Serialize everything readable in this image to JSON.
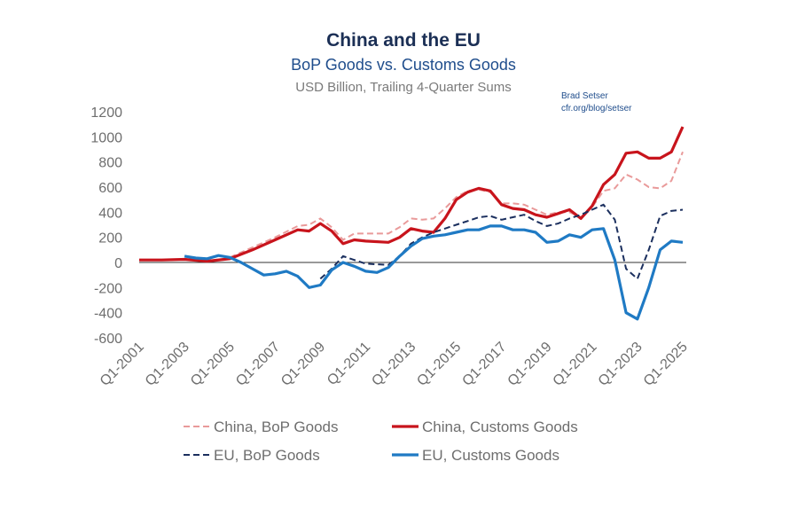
{
  "chart_data": {
    "type": "line",
    "title": "China and the EU",
    "subtitle": "BoP Goods vs. Customs Goods",
    "subtitle2": "USD Billion, Trailing 4-Quarter Sums",
    "credit": [
      "Brad Setser",
      "cfr.org/blog/setser"
    ],
    "ylim": [
      -600,
      1200
    ],
    "yticks": [
      1200,
      1000,
      800,
      600,
      400,
      200,
      0,
      -200,
      -400,
      -600
    ],
    "xlim": [
      2001,
      2025
    ],
    "xticks": [
      "Q1-2001",
      "Q1-2003",
      "Q1-2005",
      "Q1-2007",
      "Q1-2009",
      "Q1-2011",
      "Q1-2013",
      "Q1-2015",
      "Q1-2017",
      "Q1-2019",
      "Q1-2021",
      "Q1-2023",
      "Q1-2025"
    ],
    "grid": false,
    "legend_position": "bottom",
    "series": [
      {
        "name": "China, BoP Goods",
        "color": "#e99a9a",
        "style": "dashed",
        "x": [
          2005,
          2006,
          2007,
          2008,
          2008.5,
          2009,
          2009.5,
          2010,
          2010.5,
          2011,
          2012,
          2012.5,
          2013,
          2013.5,
          2014,
          2014.5,
          2015,
          2015.5,
          2016,
          2016.5,
          2017,
          2017.5,
          2018,
          2018.5,
          2019,
          2019.5,
          2020,
          2020.5,
          2021,
          2021.5,
          2022,
          2022.5,
          2023,
          2023.5,
          2024,
          2024.5,
          2025
        ],
        "values": [
          40,
          120,
          200,
          290,
          300,
          350,
          280,
          180,
          230,
          230,
          230,
          280,
          350,
          340,
          350,
          430,
          520,
          570,
          580,
          560,
          470,
          470,
          460,
          420,
          380,
          400,
          400,
          360,
          440,
          570,
          590,
          700,
          660,
          600,
          590,
          650,
          880
        ]
      },
      {
        "name": "China, Customs Goods",
        "color": "#c8141c",
        "style": "solid",
        "x": [
          2001,
          2002,
          2003,
          2004,
          2005,
          2006,
          2007,
          2008,
          2008.5,
          2009,
          2009.5,
          2010,
          2010.5,
          2011,
          2012,
          2012.5,
          2013,
          2013.5,
          2014,
          2014.5,
          2015,
          2015.5,
          2016,
          2016.5,
          2017,
          2017.5,
          2018,
          2018.5,
          2019,
          2019.5,
          2020,
          2020.5,
          2021,
          2021.5,
          2022,
          2022.5,
          2023,
          2023.5,
          2024,
          2024.5,
          2025
        ],
        "values": [
          20,
          20,
          25,
          10,
          30,
          100,
          180,
          260,
          250,
          310,
          250,
          150,
          180,
          170,
          160,
          200,
          270,
          250,
          240,
          350,
          500,
          560,
          590,
          570,
          460,
          430,
          420,
          380,
          360,
          390,
          420,
          350,
          450,
          620,
          700,
          870,
          880,
          830,
          830,
          880,
          1080
        ]
      },
      {
        "name": "EU, BoP Goods",
        "color": "#1b2f5e",
        "style": "dashed",
        "x": [
          2009,
          2009.5,
          2010,
          2010.5,
          2011,
          2012,
          2012.5,
          2013,
          2013.5,
          2014,
          2014.5,
          2015,
          2015.5,
          2016,
          2016.5,
          2017,
          2017.5,
          2018,
          2018.5,
          2019,
          2019.5,
          2020,
          2020.5,
          2021,
          2021.5,
          2022,
          2022.5,
          2023,
          2023.5,
          2024,
          2024.5,
          2025
        ],
        "values": [
          -130,
          -50,
          50,
          20,
          -10,
          -20,
          50,
          150,
          200,
          240,
          270,
          300,
          330,
          360,
          370,
          340,
          360,
          380,
          330,
          290,
          310,
          350,
          380,
          420,
          460,
          340,
          -50,
          -130,
          100,
          370,
          410,
          420
        ]
      },
      {
        "name": "EU, Customs Goods",
        "color": "#1f7ac4",
        "style": "solid",
        "x": [
          2003,
          2003.5,
          2004,
          2004.5,
          2005,
          2005.5,
          2006,
          2006.5,
          2007,
          2007.5,
          2008,
          2008.5,
          2009,
          2009.5,
          2010,
          2010.5,
          2011,
          2011.5,
          2012,
          2012.5,
          2013,
          2013.5,
          2014,
          2014.5,
          2015,
          2015.5,
          2016,
          2016.5,
          2017,
          2017.5,
          2018,
          2018.5,
          2019,
          2019.5,
          2020,
          2020.5,
          2021,
          2021.5,
          2022,
          2022.5,
          2023,
          2023.5,
          2024,
          2024.5,
          2025
        ],
        "values": [
          50,
          35,
          30,
          55,
          40,
          0,
          -50,
          -100,
          -90,
          -70,
          -110,
          -200,
          -180,
          -60,
          0,
          -30,
          -70,
          -80,
          -40,
          50,
          130,
          190,
          210,
          220,
          240,
          260,
          260,
          290,
          290,
          260,
          260,
          240,
          160,
          170,
          220,
          200,
          260,
          270,
          20,
          -400,
          -450,
          -200,
          100,
          170,
          160
        ]
      }
    ]
  }
}
